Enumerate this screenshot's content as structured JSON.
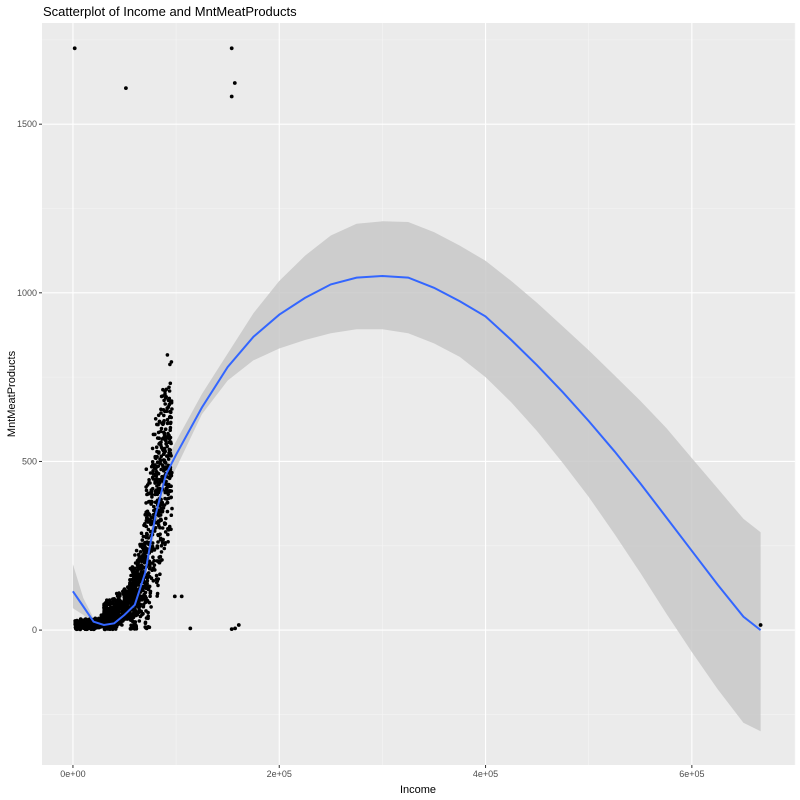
{
  "chart_data": {
    "type": "scatter",
    "title": "Scatterplot of Income and  MntMeatProducts",
    "xlabel": "Income",
    "ylabel": "MntMeatProducts",
    "xlim": [
      -30000,
      700000
    ],
    "ylim": [
      -400,
      1800
    ],
    "x_ticks": [
      0,
      200000,
      400000,
      600000
    ],
    "x_tick_labels": [
      "0e+00",
      "2e+05",
      "4e+05",
      "6e+05"
    ],
    "y_ticks": [
      0,
      500,
      1000,
      1500
    ],
    "y_tick_labels": [
      "0",
      "500",
      "1000",
      "1500"
    ],
    "grid": true,
    "background": "#ebebeb",
    "point_color": "#000000",
    "smooth_color": "#3366ff",
    "ribbon_color": "#c8c8c8",
    "outliers": [
      {
        "x": 1730,
        "y": 1725
      },
      {
        "x": 51381,
        "y": 1607
      },
      {
        "x": 153924,
        "y": 1725
      },
      {
        "x": 156924,
        "y": 1622
      },
      {
        "x": 153924,
        "y": 1582
      },
      {
        "x": 105471,
        "y": 100
      },
      {
        "x": 98777,
        "y": 100
      },
      {
        "x": 113734,
        "y": 5
      },
      {
        "x": 153924,
        "y": 3
      },
      {
        "x": 157243,
        "y": 5
      },
      {
        "x": 160803,
        "y": 15
      },
      {
        "x": 666666,
        "y": 15
      }
    ],
    "smooth": {
      "x": [
        0,
        10000,
        20000,
        30000,
        40000,
        50000,
        60000,
        70000,
        80000,
        90000,
        100000,
        125000,
        150000,
        175000,
        200000,
        225000,
        250000,
        275000,
        300000,
        325000,
        350000,
        375000,
        400000,
        425000,
        450000,
        475000,
        500000,
        525000,
        550000,
        575000,
        600000,
        625000,
        650000,
        666666
      ],
      "y": [
        115,
        70,
        25,
        15,
        20,
        45,
        75,
        170,
        340,
        460,
        520,
        660,
        780,
        870,
        935,
        985,
        1025,
        1045,
        1050,
        1045,
        1015,
        975,
        930,
        860,
        785,
        705,
        620,
        530,
        435,
        335,
        235,
        135,
        40,
        0
      ],
      "ymin": [
        65,
        45,
        15,
        5,
        10,
        35,
        60,
        150,
        300,
        420,
        480,
        640,
        740,
        800,
        835,
        860,
        880,
        892,
        892,
        880,
        850,
        810,
        750,
        675,
        590,
        495,
        395,
        285,
        170,
        50,
        -65,
        -175,
        -275,
        -300
      ],
      "ymax": [
        195,
        95,
        35,
        25,
        30,
        55,
        90,
        190,
        380,
        500,
        560,
        700,
        820,
        940,
        1035,
        1110,
        1170,
        1205,
        1212,
        1210,
        1180,
        1140,
        1095,
        1035,
        970,
        900,
        830,
        755,
        680,
        600,
        510,
        420,
        330,
        290
      ]
    }
  }
}
